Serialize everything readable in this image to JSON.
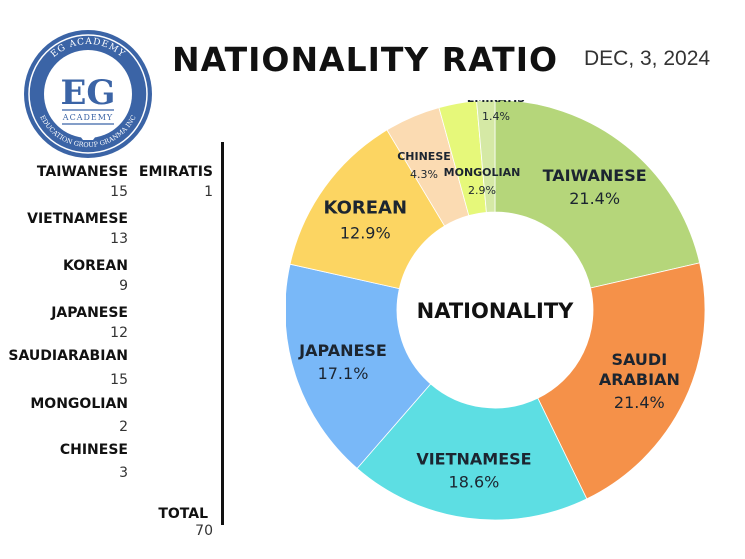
{
  "header": {
    "title": "NATIONALITY RATIO",
    "date": "DEC, 3, 2024",
    "logo": {
      "top_text": "EG ACADEMY",
      "initials": "EG",
      "sub_text": "ACADEMY",
      "bottom_text": "EDUCATION GROUP GRANMA INC"
    }
  },
  "counts": {
    "items": [
      {
        "label": "TAIWANESE",
        "count": "15"
      },
      {
        "label": "EMIRATIS",
        "count": "1"
      },
      {
        "label": "VIETNAMESE",
        "count": "13"
      },
      {
        "label": "KOREAN",
        "count": "9"
      },
      {
        "label": "JAPANESE",
        "count": "12"
      },
      {
        "label": "SAUDIARABIAN",
        "count": "15"
      },
      {
        "label": "MONGOLIAN",
        "count": "2"
      },
      {
        "label": "CHINESE",
        "count": "3"
      }
    ],
    "total_label": "TOTAL",
    "total_value": "70"
  },
  "chart_data": {
    "type": "pie",
    "donut": true,
    "center_label": "NATIONALITY",
    "slices": [
      {
        "name": "TAIWANESE",
        "label_lines": [
          "TAIWANESE"
        ],
        "value": 21.4,
        "pct": "21.4%",
        "color": "#b5d67a"
      },
      {
        "name": "SAUDI ARABIAN",
        "label_lines": [
          "SAUDI",
          "ARABIAN"
        ],
        "value": 21.4,
        "pct": "21.4%",
        "color": "#f59149"
      },
      {
        "name": "VIETNAMESE",
        "label_lines": [
          "VIETNAMESE"
        ],
        "value": 18.6,
        "pct": "18.6%",
        "color": "#5ddee3"
      },
      {
        "name": "JAPANESE",
        "label_lines": [
          "JAPANESE"
        ],
        "value": 17.1,
        "pct": "17.1%",
        "color": "#79b8f8"
      },
      {
        "name": "KOREAN",
        "label_lines": [
          "KOREAN"
        ],
        "value": 12.9,
        "pct": "12.9%",
        "color": "#fcd562"
      },
      {
        "name": "CHINESE",
        "label_lines": [
          "CHINESE"
        ],
        "value": 4.3,
        "pct": "4.3%",
        "color": "#fbdbb2"
      },
      {
        "name": "MONGOLIAN",
        "label_lines": [
          "MONGOLIAN"
        ],
        "value": 2.9,
        "pct": "2.9%",
        "color": "#e6f87a"
      },
      {
        "name": "EMIRATIS",
        "label_lines": [
          "EMIRATIS"
        ],
        "value": 1.4,
        "pct": "1.4%",
        "color": "#d5e9a5"
      }
    ]
  }
}
